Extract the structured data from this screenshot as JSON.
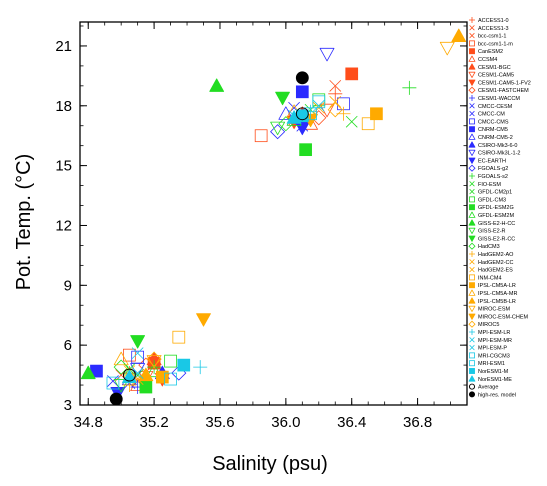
{
  "chart_data": {
    "type": "scatter",
    "title": "",
    "xlabel": "Salinity (psu)",
    "ylabel": "Pot. Temp. (°C)",
    "xlim": [
      34.75,
      37.1
    ],
    "ylim": [
      3,
      22.2
    ],
    "xticks": [
      34.8,
      35.2,
      35.6,
      36.0,
      36.4,
      36.8
    ],
    "xtick_labels": [
      "34.8",
      "35.2",
      "35.6",
      "36.0",
      "36.4",
      "36.8"
    ],
    "yticks": [
      3,
      6,
      9,
      12,
      15,
      18,
      21
    ],
    "ytick_labels": [
      "3",
      "6",
      "9",
      "12",
      "15",
      "18",
      "21"
    ],
    "grid": false,
    "legend_position": "right",
    "series": [
      {
        "name": "ACCESS1-0",
        "marker": "plus",
        "color": "#ff4d1a",
        "points": [
          [
            35.05,
            4.6
          ],
          [
            36.3,
            18.6
          ]
        ]
      },
      {
        "name": "ACCESS1-3",
        "marker": "x",
        "color": "#ff4d1a",
        "points": [
          [
            35.1,
            4.2
          ],
          [
            36.3,
            19.0
          ]
        ]
      },
      {
        "name": "bcc-csm1-1",
        "marker": "x",
        "color": "#ff4d1a",
        "points": [
          [
            35.0,
            4.5
          ],
          [
            36.05,
            17.3
          ]
        ]
      },
      {
        "name": "bcc-csm1-1-m",
        "marker": "square-open",
        "color": "#ff4d1a",
        "points": [
          [
            35.05,
            5.5
          ],
          [
            35.85,
            16.5
          ]
        ]
      },
      {
        "name": "CanESM2",
        "marker": "square",
        "color": "#ff4d1a",
        "points": [
          [
            35.2,
            5.1
          ],
          [
            36.4,
            19.6
          ]
        ]
      },
      {
        "name": "CCSM4",
        "marker": "triangle-open",
        "color": "#ff4d1a",
        "points": [
          [
            35.1,
            4.0
          ],
          [
            36.15,
            17.1
          ]
        ]
      },
      {
        "name": "CESM1-BGC",
        "marker": "triangle",
        "color": "#ff4d1a",
        "points": [
          [
            35.2,
            5.3
          ],
          [
            36.1,
            17.6
          ]
        ]
      },
      {
        "name": "CESM1-CAM5",
        "marker": "triangle-down-open",
        "color": "#ff4d1a",
        "points": [
          [
            35.15,
            4.4
          ],
          [
            36.25,
            17.8
          ]
        ]
      },
      {
        "name": "CESM1-CAM5-1-FV2",
        "marker": "triangle-down",
        "color": "#ff4d1a",
        "points": [
          [
            35.25,
            4.3
          ],
          [
            36.05,
            17.2
          ]
        ]
      },
      {
        "name": "CESM1-FASTCHEM",
        "marker": "diamond-open",
        "color": "#ff4d1a",
        "points": [
          [
            35.15,
            5.0
          ],
          [
            36.2,
            17.4
          ]
        ]
      },
      {
        "name": "CESM1-WACCM",
        "marker": "plus",
        "color": "#2b2bff",
        "points": [
          [
            35.1,
            3.9
          ],
          [
            36.1,
            17.5
          ]
        ]
      },
      {
        "name": "CMCC-CESM",
        "marker": "x",
        "color": "#2b2bff",
        "points": [
          [
            34.95,
            4.2
          ],
          [
            36.05,
            17.9
          ]
        ]
      },
      {
        "name": "CMCC-CM",
        "marker": "x",
        "color": "#2b2bff",
        "points": [
          [
            35.05,
            4.1
          ],
          [
            36.1,
            17.0
          ]
        ]
      },
      {
        "name": "CMCC-CMS",
        "marker": "square-open",
        "color": "#2b2bff",
        "points": [
          [
            35.1,
            5.4
          ],
          [
            36.35,
            18.1
          ]
        ]
      },
      {
        "name": "CNRM-CM5",
        "marker": "square",
        "color": "#2b2bff",
        "points": [
          [
            34.85,
            4.7
          ],
          [
            36.1,
            18.7
          ]
        ]
      },
      {
        "name": "CNRM-CM5-2",
        "marker": "triangle-open",
        "color": "#2b2bff",
        "points": [
          [
            35.05,
            4.3
          ],
          [
            36.0,
            17.6
          ]
        ]
      },
      {
        "name": "CSIRO-Mk3-6-0",
        "marker": "triangle",
        "color": "#2b2bff",
        "points": [
          [
            35.25,
            4.6
          ],
          [
            36.1,
            17.4
          ]
        ]
      },
      {
        "name": "CSIRO-Mk3L-1-2",
        "marker": "triangle-down-open",
        "color": "#2b2bff",
        "points": [
          [
            35.1,
            4.8
          ],
          [
            36.25,
            20.6
          ]
        ]
      },
      {
        "name": "EC-EARTH",
        "marker": "triangle-down",
        "color": "#2b2bff",
        "points": [
          [
            34.98,
            3.6
          ],
          [
            36.1,
            16.9
          ]
        ]
      },
      {
        "name": "FGOALS-g2",
        "marker": "diamond-open",
        "color": "#2b2bff",
        "points": [
          [
            35.35,
            4.6
          ],
          [
            35.95,
            16.7
          ]
        ]
      },
      {
        "name": "FGOALS-s2",
        "marker": "plus",
        "color": "#22dd22",
        "points": [
          [
            35.2,
            4.9
          ],
          [
            36.75,
            18.9
          ]
        ]
      },
      {
        "name": "FIO-ESM",
        "marker": "x",
        "color": "#22dd22",
        "points": [
          [
            35.05,
            4.8
          ],
          [
            36.4,
            17.2
          ]
        ]
      },
      {
        "name": "GFDL-CM2p1",
        "marker": "x",
        "color": "#22dd22",
        "points": [
          [
            35.1,
            4.5
          ],
          [
            36.15,
            17.8
          ]
        ]
      },
      {
        "name": "GFDL-CM3",
        "marker": "square-open",
        "color": "#22dd22",
        "points": [
          [
            35.3,
            5.2
          ],
          [
            36.2,
            18.3
          ]
        ]
      },
      {
        "name": "GFDL-ESM2G",
        "marker": "square",
        "color": "#22dd22",
        "points": [
          [
            35.15,
            3.9
          ],
          [
            36.12,
            15.8
          ]
        ]
      },
      {
        "name": "GFDL-ESM2M",
        "marker": "triangle-open",
        "color": "#22dd22",
        "points": [
          [
            35.2,
            4.7
          ],
          [
            36.05,
            17.3
          ]
        ]
      },
      {
        "name": "GISS-E2-H-CC",
        "marker": "triangle",
        "color": "#22dd22",
        "points": [
          [
            34.8,
            4.6
          ],
          [
            35.58,
            19.0
          ]
        ]
      },
      {
        "name": "GISS-E2-R",
        "marker": "triangle-down-open",
        "color": "#22dd22",
        "points": [
          [
            35.0,
            4.0
          ],
          [
            35.95,
            16.9
          ]
        ]
      },
      {
        "name": "GISS-E2-R-CC",
        "marker": "triangle-down",
        "color": "#22dd22",
        "points": [
          [
            35.1,
            6.2
          ],
          [
            35.98,
            18.4
          ]
        ]
      },
      {
        "name": "HadCM3",
        "marker": "diamond-open",
        "color": "#22dd22",
        "points": [
          [
            35.0,
            4.9
          ],
          [
            36.0,
            17.1
          ]
        ]
      },
      {
        "name": "HadGEM2-AO",
        "marker": "plus",
        "color": "#ffaa00",
        "points": [
          [
            35.05,
            4.0
          ],
          [
            36.35,
            17.6
          ]
        ]
      },
      {
        "name": "HadGEM2-CC",
        "marker": "x",
        "color": "#ffaa00",
        "points": [
          [
            35.1,
            4.3
          ],
          [
            36.3,
            18.2
          ]
        ]
      },
      {
        "name": "HadGEM2-ES",
        "marker": "x",
        "color": "#ffaa00",
        "points": [
          [
            35.05,
            4.7
          ],
          [
            36.2,
            17.9
          ]
        ]
      },
      {
        "name": "INM-CM4",
        "marker": "square-open",
        "color": "#ffaa00",
        "points": [
          [
            35.35,
            6.4
          ],
          [
            36.5,
            17.1
          ]
        ]
      },
      {
        "name": "IPSL-CM5A-LR",
        "marker": "square",
        "color": "#ffaa00",
        "points": [
          [
            35.25,
            4.4
          ],
          [
            36.55,
            17.6
          ]
        ]
      },
      {
        "name": "IPSL-CM5A-MR",
        "marker": "triangle-open",
        "color": "#ffaa00",
        "points": [
          [
            35.0,
            5.3
          ],
          [
            36.05,
            17.7
          ]
        ]
      },
      {
        "name": "IPSL-CM5B-LR",
        "marker": "triangle",
        "color": "#ffaa00",
        "points": [
          [
            35.15,
            4.5
          ],
          [
            37.05,
            21.5
          ]
        ]
      },
      {
        "name": "MIROC-ESM",
        "marker": "triangle-down-open",
        "color": "#ffaa00",
        "points": [
          [
            35.2,
            5.2
          ],
          [
            36.98,
            20.9
          ]
        ]
      },
      {
        "name": "MIROC-ESM-CHEM",
        "marker": "triangle-down",
        "color": "#ffaa00",
        "points": [
          [
            35.5,
            7.3
          ],
          [
            36.15,
            17.3
          ]
        ]
      },
      {
        "name": "MIROC5",
        "marker": "diamond-open",
        "color": "#ffaa00",
        "points": [
          [
            35.2,
            5.3
          ],
          [
            36.3,
            17.8
          ]
        ]
      },
      {
        "name": "MPI-ESM-LR",
        "marker": "plus",
        "color": "#19c8e6",
        "points": [
          [
            35.48,
            4.9
          ],
          [
            36.15,
            17.7
          ]
        ]
      },
      {
        "name": "MPI-ESM-MR",
        "marker": "x",
        "color": "#19c8e6",
        "points": [
          [
            35.1,
            4.6
          ],
          [
            36.2,
            18.0
          ]
        ]
      },
      {
        "name": "MPI-ESM-P",
        "marker": "x",
        "color": "#19c8e6",
        "points": [
          [
            35.1,
            5.6
          ],
          [
            36.05,
            17.5
          ]
        ]
      },
      {
        "name": "MRI-CGCM3",
        "marker": "square-open",
        "color": "#19c8e6",
        "points": [
          [
            34.95,
            4.1
          ],
          [
            36.2,
            18.2
          ]
        ]
      },
      {
        "name": "MRI-ESM1",
        "marker": "square-open",
        "color": "#19c8e6",
        "points": [
          [
            35.3,
            4.3
          ],
          [
            36.15,
            17.6
          ]
        ]
      },
      {
        "name": "NorESM1-M",
        "marker": "square",
        "color": "#19c8e6",
        "points": [
          [
            35.38,
            5.0
          ],
          [
            36.1,
            17.5
          ]
        ]
      },
      {
        "name": "NorESM1-ME",
        "marker": "triangle",
        "color": "#19c8e6",
        "points": [
          [
            35.05,
            4.4
          ],
          [
            36.05,
            17.4
          ]
        ]
      },
      {
        "name": "Average",
        "marker": "circle-open",
        "color": "#000000",
        "points": [
          [
            35.05,
            4.5
          ],
          [
            36.1,
            17.6
          ]
        ]
      },
      {
        "name": "high-res. model",
        "marker": "circle",
        "color": "#000000",
        "points": [
          [
            34.97,
            3.3
          ],
          [
            36.1,
            19.4
          ]
        ]
      }
    ]
  }
}
